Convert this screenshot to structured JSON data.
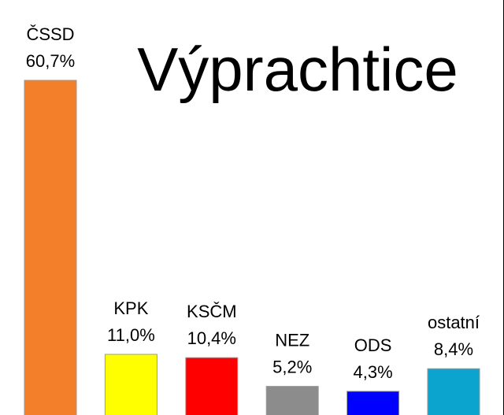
{
  "chart_data": {
    "type": "bar",
    "title": "Výprachtice",
    "categories": [
      "ČSSD",
      "KPK",
      "KSČM",
      "NEZ",
      "ODS",
      "ostatní"
    ],
    "values": [
      60.7,
      11.0,
      10.4,
      5.2,
      4.3,
      8.4
    ],
    "value_labels": [
      "60,7%",
      "11,0%",
      "10,4%",
      "5,2%",
      "4,3%",
      "8,4%"
    ],
    "colors": [
      "#f47f2b",
      "#ffff00",
      "#ff0000",
      "#8c8c8c",
      "#0000ff",
      "#0aa4cf"
    ],
    "xlabel": "",
    "ylabel": "",
    "ylim": [
      0,
      60.7
    ],
    "grid": false,
    "legend": "none"
  }
}
